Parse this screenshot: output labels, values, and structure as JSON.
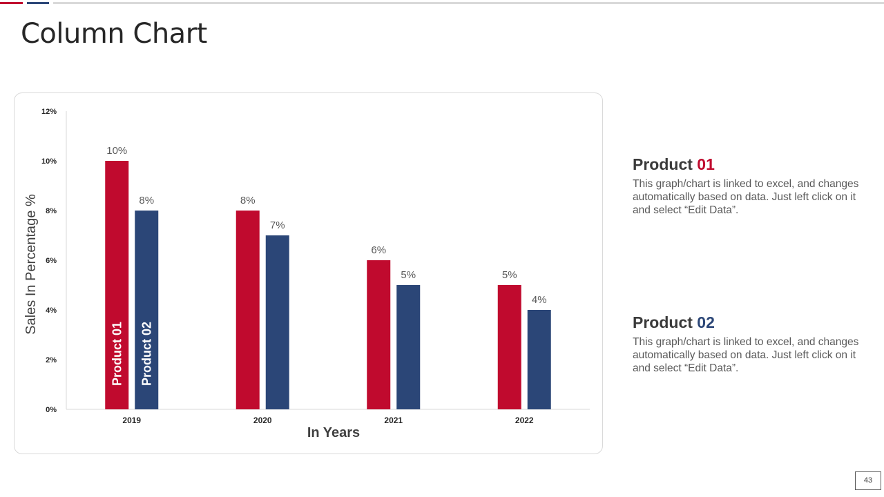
{
  "title": "Column Chart",
  "colors": {
    "product01": "#c00a2e",
    "product02": "#2b4677",
    "top_bar_gray": "#d9d9d9"
  },
  "chart_data": {
    "type": "bar",
    "title": "",
    "categories": [
      "2019",
      "2020",
      "2021",
      "2022"
    ],
    "series": [
      {
        "name": "Product 01",
        "values": [
          10,
          8,
          6,
          5
        ],
        "labels": [
          "10%",
          "8%",
          "6%",
          "5%"
        ]
      },
      {
        "name": "Product 02",
        "values": [
          8,
          7,
          5,
          4
        ],
        "labels": [
          "8%",
          "7%",
          "5%",
          "4%"
        ]
      }
    ],
    "xlabel": "In Years",
    "ylabel": "Sales In Percentage %",
    "ylim": [
      0,
      12
    ],
    "yticks": [
      "0%",
      "2%",
      "4%",
      "6%",
      "8%",
      "10%",
      "12%"
    ],
    "grid": false,
    "legend": "vertical labels inside first category bars"
  },
  "legend_panel": [
    {
      "title_word": "Product",
      "title_number": "01",
      "description": "This graph/chart is linked to excel, and changes automatically based on data. Just left click on it and select “Edit Data”."
    },
    {
      "title_word": "Product",
      "title_number": "02",
      "description": "This graph/chart is linked to excel, and changes automatically based on data. Just left click on it and select “Edit Data”."
    }
  ],
  "page_number": "43"
}
